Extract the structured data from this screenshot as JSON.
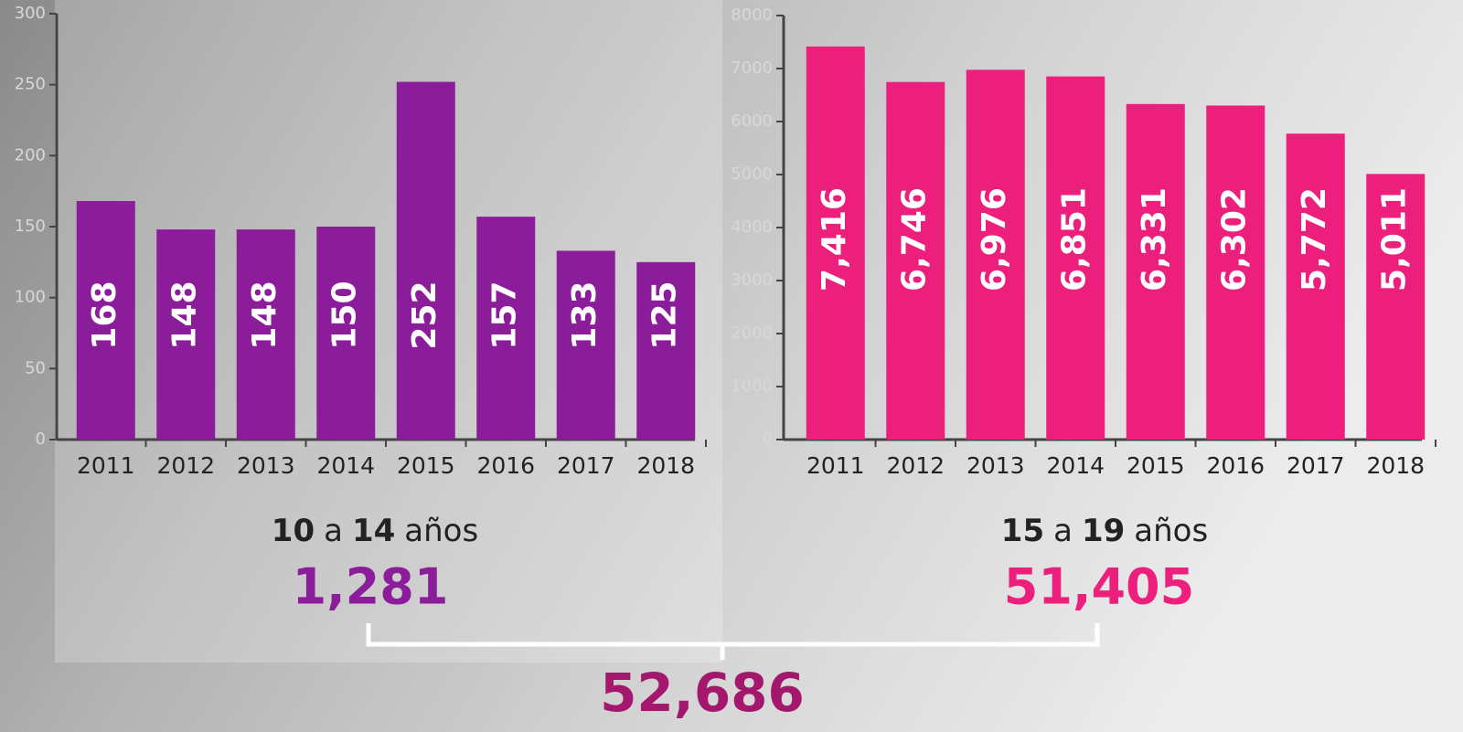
{
  "chart_data": [
    {
      "type": "bar",
      "caption": [
        "10",
        "a",
        "14",
        "años"
      ],
      "total": "1,281",
      "categories": [
        "2011",
        "2012",
        "2013",
        "2014",
        "2015",
        "2016",
        "2017",
        "2018"
      ],
      "values": [
        168,
        148,
        148,
        150,
        252,
        157,
        133,
        125
      ],
      "color": "#8b1d9b",
      "ylim": [
        0,
        300
      ],
      "yticks": [
        0,
        50,
        100,
        150,
        200,
        250,
        300
      ]
    },
    {
      "type": "bar",
      "caption": [
        "15",
        "a",
        "19",
        "años"
      ],
      "total": "51,405",
      "categories": [
        "2011",
        "2012",
        "2013",
        "2014",
        "2015",
        "2016",
        "2017",
        "2018"
      ],
      "values": [
        7416,
        6746,
        6976,
        6851,
        6331,
        6302,
        5772,
        5011
      ],
      "value_labels": [
        "7,416",
        "6,746",
        "6,976",
        "6,851",
        "6,331",
        "6,302",
        "5,772",
        "5,011"
      ],
      "color": "#ec1f7d",
      "ylim": [
        0,
        8000
      ],
      "yticks": [
        0,
        1000,
        2000,
        3000,
        4000,
        5000,
        6000,
        7000,
        8000
      ]
    }
  ],
  "grand_total": "52,686"
}
